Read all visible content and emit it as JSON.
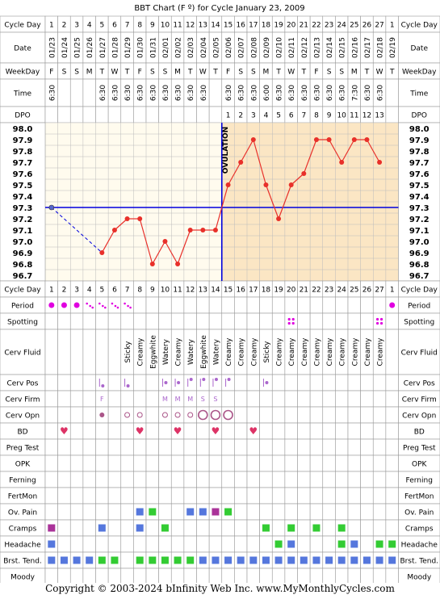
{
  "title": "BBT Chart (F º) for Cycle January 23, 2009",
  "copyright": "Copyright © 2003-2024 bInfinity Web Inc.    www.MyMonthlyCycles.com",
  "colors": {
    "grid": "#999999",
    "follicular": "#fffbee",
    "luteal": "#fbe6c4",
    "temp_line": "#e8302a",
    "temp_point": "#e8302a",
    "coverline": "#0000dd",
    "ovulation_line": "#0000dd",
    "period": "#e000e0",
    "green_mark": "#33cc33",
    "blue_mark": "#5577dd",
    "purple_mark": "#aa3399",
    "pink_mark": "#cc2277",
    "heart": "#dd3366"
  },
  "labels": {
    "cycle_day": "Cycle Day",
    "date": "Date",
    "weekday": "WeekDay",
    "time": "Time",
    "dpo": "DPO",
    "ovulation": "OVULATION"
  },
  "cycle_days": [
    "1",
    "2",
    "3",
    "4",
    "5",
    "6",
    "7",
    "8",
    "9",
    "10",
    "11",
    "12",
    "13",
    "14",
    "15",
    "16",
    "17",
    "18",
    "19",
    "20",
    "21",
    "22",
    "23",
    "24",
    "25",
    "26",
    "27",
    "1"
  ],
  "dates": [
    "01/23",
    "01/24",
    "01/25",
    "01/26",
    "01/27",
    "01/28",
    "01/29",
    "01/30",
    "01/31",
    "02/01",
    "02/02",
    "02/03",
    "02/04",
    "02/05",
    "02/06",
    "02/07",
    "02/08",
    "02/09",
    "02/10",
    "02/11",
    "02/12",
    "02/13",
    "02/14",
    "02/15",
    "02/16",
    "02/17",
    "02/18",
    "02/19"
  ],
  "weekdays": [
    "F",
    "S",
    "S",
    "M",
    "T",
    "W",
    "T",
    "F",
    "S",
    "S",
    "M",
    "T",
    "W",
    "T",
    "F",
    "S",
    "S",
    "M",
    "T",
    "W",
    "T",
    "F",
    "S",
    "S",
    "M",
    "T",
    "W",
    "T"
  ],
  "times": [
    "6:30",
    "",
    "",
    "",
    "6:30",
    "6:30",
    "6:30",
    "6:30",
    "6:30",
    "6:30",
    "6:30",
    "6:30",
    "6:30",
    "",
    "6:30",
    "6:30",
    "6:30",
    "6:00",
    "6:30",
    "6:30",
    "6:30",
    "6:30",
    "6:30",
    "6:30",
    "7:30",
    "6:30",
    "6:30",
    ""
  ],
  "dpo": [
    "",
    "",
    "",
    "",
    "",
    "",
    "",
    "",
    "",
    "",
    "",
    "",
    "",
    "",
    "1",
    "2",
    "3",
    "4",
    "5",
    "6",
    "7",
    "8",
    "9",
    "10",
    "11",
    "12",
    "13",
    ""
  ],
  "chart_data": {
    "type": "line",
    "ylabel": "BBT Chart (F º)",
    "y_ticks": [
      "98.0",
      "97.9",
      "97.8",
      "97.7",
      "97.6",
      "97.5",
      "97.4",
      "97.3",
      "97.2",
      "97.1",
      "97.0",
      "96.9",
      "96.8",
      "96.7"
    ],
    "ylim": [
      96.7,
      98.0
    ],
    "coverline": 97.3,
    "ovulation_after_day": 14,
    "temps": [
      97.3,
      null,
      null,
      null,
      96.9,
      97.1,
      97.2,
      97.2,
      96.8,
      97.0,
      96.8,
      97.1,
      97.1,
      97.1,
      97.5,
      97.7,
      97.9,
      97.5,
      97.2,
      97.5,
      97.6,
      97.9,
      97.9,
      97.7,
      97.9,
      97.9,
      97.7,
      null
    ],
    "dashed_gap": [
      1,
      5
    ]
  },
  "rows": {
    "period": "Period",
    "spotting": "Spotting",
    "cerv_fluid": "Cerv Fluid",
    "cerv_pos": "Cerv Pos",
    "cerv_firm": "Cerv Firm",
    "cerv_opn": "Cerv Opn",
    "bd": "BD",
    "preg_test": "Preg Test",
    "opk": "OPK",
    "ferning": "Ferning",
    "fertmon": "FertMon",
    "ov_pain": "Ov. Pain",
    "cramps": "Cramps",
    "headache": "Headache",
    "brst_tend": "Brst. Tend.",
    "moody": "Moody"
  },
  "observations": {
    "period": [
      "dot",
      "dot",
      "dot",
      "dots",
      "dots",
      "dots",
      "dots",
      "",
      "",
      "",
      "",
      "",
      "",
      "",
      "",
      "",
      "",
      "",
      "",
      "",
      "",
      "",
      "",
      "",
      "",
      "",
      "",
      "dot"
    ],
    "spotting": [
      "",
      "",
      "",
      "",
      "",
      "",
      "",
      "",
      "",
      "",
      "",
      "",
      "",
      "",
      "",
      "",
      "",
      "",
      "",
      "quad",
      "",
      "",
      "",
      "",
      "",
      "",
      "quad",
      ""
    ],
    "cerv_fluid": [
      "",
      "",
      "",
      "",
      "",
      "",
      "Sticky",
      "Creamy",
      "Eggwhite",
      "Watery",
      "Creamy",
      "Watery",
      "Eggwhite",
      "Watery",
      "Creamy",
      "Creamy",
      "Creamy",
      "Sticky",
      "Creamy",
      "Creamy",
      "Creamy",
      "Creamy",
      "Creamy",
      "Creamy",
      "Creamy",
      "Creamy",
      "Creamy",
      ""
    ],
    "cerv_pos": [
      "",
      "",
      "",
      "",
      "low",
      "",
      "low",
      "",
      "",
      "mid",
      "mid",
      "high",
      "high",
      "high",
      "high",
      "",
      "",
      "mid",
      "",
      "",
      "",
      "",
      "",
      "",
      "",
      "",
      "",
      ""
    ],
    "cerv_firm": [
      "",
      "",
      "",
      "",
      "F",
      "",
      "",
      "",
      "",
      "M",
      "M",
      "M",
      "S",
      "S",
      "",
      "",
      "",
      "",
      "",
      "",
      "",
      "",
      "",
      "",
      "",
      "",
      "",
      ""
    ],
    "cerv_opn": [
      "",
      "",
      "",
      "",
      "closed",
      "",
      "o",
      "o",
      "",
      "o",
      "o",
      "o",
      "O",
      "O",
      "O",
      "",
      "",
      "",
      "",
      "",
      "",
      "",
      "",
      "",
      "",
      "",
      "",
      ""
    ],
    "bd": [
      "",
      "heart",
      "",
      "",
      "",
      "",
      "",
      "heart",
      "",
      "",
      "heart",
      "",
      "",
      "heart",
      "",
      "",
      "heart",
      "",
      "",
      "",
      "",
      "",
      "",
      "",
      "",
      "",
      "",
      ""
    ],
    "ov_pain": [
      "",
      "",
      "",
      "",
      "",
      "",
      "",
      "blue",
      "green",
      "",
      "",
      "blue",
      "blue",
      "purple",
      "green",
      "",
      "",
      "",
      "",
      "",
      "",
      "",
      "",
      "",
      "",
      "",
      "",
      ""
    ],
    "cramps": [
      "purple",
      "",
      "",
      "",
      "blue",
      "",
      "",
      "blue",
      "",
      "green",
      "",
      "",
      "",
      "",
      "",
      "",
      "",
      "green",
      "",
      "green",
      "",
      "green",
      "",
      "green",
      "",
      "",
      "",
      ""
    ],
    "headache": [
      "blue",
      "",
      "",
      "",
      "",
      "",
      "",
      "",
      "",
      "",
      "",
      "",
      "",
      "",
      "",
      "",
      "",
      "",
      "green",
      "blue",
      "",
      "",
      "",
      "green",
      "blue",
      "",
      "green",
      "green"
    ],
    "brst_tend": [
      "blue",
      "blue",
      "blue",
      "blue",
      "green",
      "green",
      "",
      "green",
      "green",
      "green",
      "green",
      "green",
      "blue",
      "blue",
      "blue",
      "blue",
      "blue",
      "blue",
      "blue",
      "blue",
      "blue",
      "blue",
      "blue",
      "blue",
      "blue",
      "blue",
      "blue",
      "blue"
    ]
  }
}
